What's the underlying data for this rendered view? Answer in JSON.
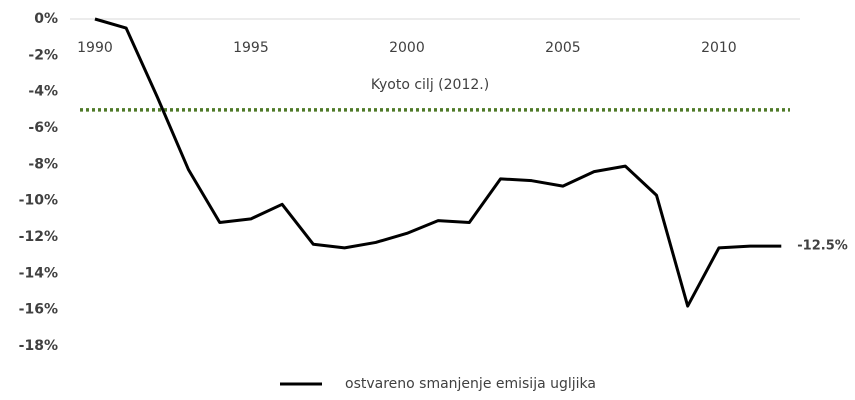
{
  "chart_data": {
    "type": "line",
    "x": [
      1990,
      1991,
      1992,
      1993,
      1994,
      1995,
      1996,
      1997,
      1998,
      1999,
      2000,
      2001,
      2002,
      2003,
      2004,
      2005,
      2006,
      2007,
      2008,
      2009,
      2010,
      2011,
      2012
    ],
    "series": [
      {
        "name": "ostvareno smanjenje emisija ugljika",
        "color": "#000000",
        "values": [
          0,
          -0.5,
          -4.3,
          -8.3,
          -11.2,
          -11.0,
          -10.2,
          -12.4,
          -12.6,
          -12.3,
          -11.8,
          -11.1,
          -11.2,
          -8.8,
          -8.9,
          -9.2,
          -8.4,
          -8.1,
          -9.7,
          -15.8,
          -12.6,
          -12.5,
          -12.5
        ],
        "value_labels": [
          null,
          null,
          null,
          null,
          null,
          null,
          null,
          null,
          null,
          null,
          null,
          null,
          null,
          null,
          null,
          null,
          null,
          null,
          null,
          null,
          null,
          null,
          "-12.5%"
        ]
      }
    ],
    "reference_lines": [
      {
        "value": -5,
        "label": "Kyoto cilj (2012.)",
        "color": "#4f7a28"
      }
    ],
    "xlim": [
      1989.2,
      2012.6
    ],
    "xticks": [
      1990,
      1995,
      2000,
      2005,
      2010
    ],
    "ylim": [
      -18,
      0
    ],
    "yticks": [
      {
        "value": 0,
        "label": "0%"
      },
      {
        "value": -2,
        "label": "-2%"
      },
      {
        "value": -4,
        "label": "-4%"
      },
      {
        "value": -6,
        "label": "-6%"
      },
      {
        "value": -8,
        "label": "-8%"
      },
      {
        "value": -10,
        "label": "-10%"
      },
      {
        "value": -12,
        "label": "-12%"
      },
      {
        "value": -14,
        "label": "-14%"
      },
      {
        "value": -16,
        "label": "-16%"
      },
      {
        "value": -18,
        "label": "-18%"
      }
    ],
    "legend": "bottom"
  }
}
